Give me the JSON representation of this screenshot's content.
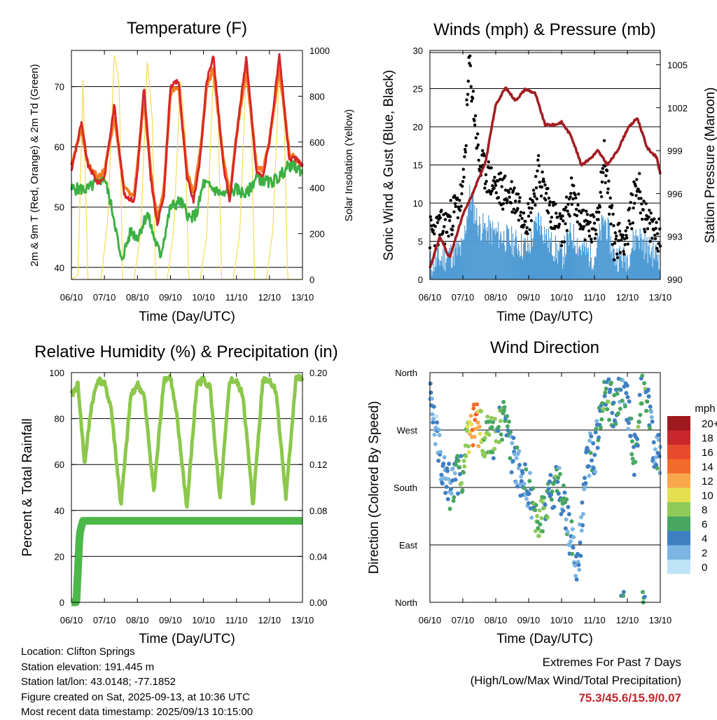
{
  "x_ticks": [
    "06/10",
    "07/10",
    "08/10",
    "09/10",
    "10/10",
    "11/10",
    "12/10",
    "13/10"
  ],
  "x_label": "Time (Day/UTC)",
  "colors": {
    "temp2m": "#d62728",
    "temp9m": "#f47c20",
    "td2m": "#3cb043",
    "solar": "#f5dc55",
    "gust": "#000000",
    "wind": "#4f9bd4",
    "pressure": "#a11d21",
    "rh": "#8cc84b",
    "precip": "#4cb849",
    "extremes": "#c0272d"
  },
  "panels": {
    "temperature": {
      "title": "Temperature (F)",
      "left_label": "2m & 9m T (Red, Orange) & 2m Td (Green)",
      "right_label": "Solar Insolation (Yellow)",
      "left_ticks": [
        "40",
        "50",
        "60",
        "70"
      ],
      "right_ticks": [
        "0",
        "200",
        "400",
        "600",
        "800",
        "1000"
      ]
    },
    "winds": {
      "title": "Winds (mph) & Pressure (mb)",
      "left_label": "Sonic Wind & Gust (Blue, Black)",
      "right_label": "Station Pressure (Maroon)",
      "left_ticks": [
        "0",
        "5",
        "10",
        "15",
        "20",
        "25",
        "30"
      ],
      "right_ticks": [
        "990",
        "993",
        "996",
        "999",
        "1002",
        "1005"
      ]
    },
    "humidity": {
      "title": "Relative Humidity (%) & Precipitation (in)",
      "left_label": "Percent & Total Rainfall",
      "left_ticks": [
        "0",
        "20",
        "40",
        "60",
        "80",
        "100"
      ],
      "right_ticks": [
        "0.00",
        "0.04",
        "0.08",
        "0.12",
        "0.16",
        "0.20"
      ]
    },
    "direction": {
      "title": "Wind Direction",
      "left_label": "Direction (Colored By Speed)",
      "left_ticks": [
        "North",
        "East",
        "South",
        "West",
        "North"
      ],
      "legend_title": "mph",
      "legend_labels": [
        "20+",
        "18",
        "16",
        "14",
        "12",
        "10",
        "8",
        "6",
        "4",
        "2",
        "0"
      ],
      "legend_colors": [
        "#9e1a1f",
        "#c8272c",
        "#e84a2e",
        "#f26b2c",
        "#f8a84b",
        "#e4e04f",
        "#8fca5a",
        "#48a660",
        "#3f7fc1",
        "#7cb5e3",
        "#bfe3f7"
      ]
    }
  },
  "chart_data": [
    {
      "type": "line",
      "title": "Temperature (F)",
      "xlabel": "Time (Day/UTC)",
      "ylabel": "2m & 9m T (Red, Orange) & 2m Td (Green)",
      "y2label": "Solar Insolation (Yellow)",
      "xlim": [
        6,
        13
      ],
      "ylim": [
        38,
        76
      ],
      "y2lim": [
        0,
        1000
      ],
      "grid": true,
      "series": [
        {
          "name": "2m T",
          "axis": "left",
          "x": [
            6.0,
            6.3,
            6.5,
            6.8,
            7.0,
            7.3,
            7.6,
            7.9,
            8.0,
            8.2,
            8.4,
            8.6,
            8.8,
            9.0,
            9.25,
            9.5,
            9.7,
            9.9,
            10.1,
            10.3,
            10.6,
            10.8,
            11.0,
            11.3,
            11.6,
            11.8,
            12.0,
            12.3,
            12.6,
            12.8,
            13.0
          ],
          "y": [
            56,
            64,
            57,
            54,
            55,
            67,
            52,
            51,
            56,
            70,
            55,
            47,
            52,
            70,
            71,
            55,
            51,
            58,
            71,
            75,
            57,
            51,
            62,
            75,
            56,
            55,
            61,
            75,
            58,
            58,
            57
          ]
        },
        {
          "name": "9m T",
          "axis": "left",
          "x": [
            6.0,
            6.3,
            6.5,
            6.8,
            7.0,
            7.3,
            7.6,
            7.9,
            8.0,
            8.2,
            8.4,
            8.6,
            8.8,
            9.0,
            9.25,
            9.5,
            9.7,
            9.9,
            10.1,
            10.3,
            10.6,
            10.8,
            11.0,
            11.3,
            11.6,
            11.8,
            12.0,
            12.3,
            12.6,
            12.8,
            13.0
          ],
          "y": [
            57,
            63,
            57,
            55,
            56,
            65,
            53,
            52,
            57,
            68,
            56,
            48,
            53,
            69,
            70,
            56,
            52,
            59,
            70,
            73,
            58,
            52,
            62,
            73,
            57,
            56,
            61,
            73,
            59,
            58,
            57
          ]
        },
        {
          "name": "2m Td",
          "axis": "left",
          "x": [
            6.0,
            6.5,
            7.0,
            7.3,
            7.5,
            7.8,
            8.0,
            8.3,
            8.5,
            8.7,
            9.0,
            9.3,
            9.6,
            9.8,
            10.0,
            10.3,
            10.6,
            11.0,
            11.3,
            11.6,
            12.0,
            12.3,
            12.6,
            13.0
          ],
          "y": [
            53,
            53,
            55,
            48,
            41,
            46,
            45,
            49,
            45,
            42,
            50,
            51,
            48,
            49,
            54,
            53,
            52,
            53,
            52,
            55,
            54,
            55,
            57,
            56
          ]
        },
        {
          "name": "Solar",
          "axis": "right",
          "x": [
            6.0,
            6.2,
            6.35,
            6.5,
            6.9,
            7.1,
            7.3,
            7.45,
            7.55,
            7.9,
            8.1,
            8.3,
            8.45,
            8.55,
            8.9,
            9.1,
            9.3,
            9.45,
            9.55,
            9.9,
            10.1,
            10.3,
            10.45,
            10.55,
            10.9,
            11.1,
            11.3,
            11.45,
            11.55,
            11.9,
            12.1,
            12.3,
            12.45,
            12.55,
            13.0
          ],
          "y": [
            0,
            20,
            870,
            0,
            0,
            260,
            990,
            850,
            0,
            0,
            200,
            960,
            700,
            0,
            0,
            220,
            870,
            640,
            0,
            0,
            190,
            900,
            710,
            0,
            0,
            200,
            930,
            700,
            0,
            0,
            210,
            920,
            680,
            0,
            0
          ]
        }
      ]
    },
    {
      "type": "line",
      "title": "Winds (mph) & Pressure (mb)",
      "xlabel": "Time (Day/UTC)",
      "ylabel": "Sonic Wind & Gust (Blue, Black)",
      "y2label": "Station Pressure (Maroon)",
      "xlim": [
        6,
        13
      ],
      "ylim": [
        0,
        30
      ],
      "y2lim": [
        990,
        1006
      ],
      "grid": true,
      "series": [
        {
          "name": "Sonic Wind",
          "axis": "left",
          "x": [
            6.0,
            6.5,
            7.0,
            7.2,
            7.5,
            8.0,
            8.5,
            9.0,
            9.3,
            9.6,
            10.0,
            10.3,
            10.6,
            11.0,
            11.3,
            11.6,
            12.0,
            12.3,
            12.6,
            13.0
          ],
          "y": [
            2,
            3,
            4,
            11,
            7,
            6,
            5,
            4,
            8,
            5,
            3,
            6,
            4,
            3,
            8,
            3,
            3,
            6,
            4,
            3
          ]
        },
        {
          "name": "Gust",
          "axis": "left",
          "x": [
            6.0,
            6.5,
            7.0,
            7.2,
            7.5,
            8.0,
            8.5,
            9.0,
            9.3,
            9.6,
            10.0,
            10.3,
            10.6,
            11.0,
            11.3,
            11.6,
            12.0,
            12.3,
            12.6,
            13.0
          ],
          "y": [
            6,
            7,
            11,
            28.3,
            15,
            12,
            11,
            8,
            14,
            10,
            6,
            11,
            8,
            6,
            16,
            5,
            6,
            13,
            7,
            6
          ]
        },
        {
          "name": "Station Pressure",
          "axis": "right",
          "x": [
            6.0,
            6.3,
            6.6,
            7.0,
            7.3,
            7.7,
            8.0,
            8.3,
            8.6,
            8.9,
            9.2,
            9.5,
            9.8,
            10.0,
            10.3,
            10.6,
            10.9,
            11.1,
            11.4,
            11.7,
            12.0,
            12.3,
            12.6,
            12.9,
            13.0
          ],
          "y": [
            990.8,
            993,
            991.5,
            994.5,
            996,
            998.3,
            1002.2,
            1003.4,
            1002.5,
            1003.3,
            1003,
            1000.8,
            1000.8,
            1001,
            1000,
            998,
            998.5,
            999,
            998,
            999,
            1000.5,
            1001.3,
            999.2,
            998.5,
            997.3
          ]
        }
      ]
    },
    {
      "type": "line",
      "title": "Relative Humidity (%) & Precipitation (in)",
      "xlabel": "Time (Day/UTC)",
      "ylabel": "Percent & Total Rainfall",
      "xlim": [
        6,
        13
      ],
      "ylim": [
        0,
        100
      ],
      "y2lim": [
        0,
        0.2
      ],
      "grid": true,
      "series": [
        {
          "name": "Relative Humidity",
          "axis": "left",
          "x": [
            6.0,
            6.2,
            6.4,
            6.6,
            6.8,
            7.0,
            7.2,
            7.5,
            7.8,
            8.0,
            8.2,
            8.5,
            8.8,
            9.0,
            9.2,
            9.5,
            9.8,
            10.0,
            10.2,
            10.5,
            10.8,
            11.0,
            11.2,
            11.5,
            11.8,
            12.0,
            12.2,
            12.5,
            12.8,
            13.0
          ],
          "y": [
            90,
            95,
            60,
            85,
            97,
            95,
            85,
            42,
            90,
            95,
            90,
            48,
            97,
            98,
            80,
            41,
            95,
            97,
            94,
            44,
            97,
            96,
            90,
            42,
            97,
            97,
            92,
            45,
            98,
            97
          ]
        },
        {
          "name": "Total Precipitation",
          "axis": "right",
          "x": [
            6.0,
            6.15,
            6.25,
            6.35,
            13.0
          ],
          "y": [
            0.0,
            0.0,
            0.06,
            0.071,
            0.071
          ]
        }
      ]
    },
    {
      "type": "scatter",
      "title": "Wind Direction",
      "xlabel": "Time (Day/UTC)",
      "ylabel": "Direction (Colored By Speed)",
      "xlim": [
        6,
        13
      ],
      "categories": [
        "North",
        "East",
        "South",
        "West",
        "North"
      ],
      "colorbar": {
        "label": "mph",
        "ticks": [
          0,
          2,
          4,
          6,
          8,
          10,
          12,
          14,
          16,
          18,
          20
        ]
      },
      "series": [
        {
          "name": "Wind Direction",
          "x": [
            6.0,
            6.3,
            6.6,
            7.0,
            7.2,
            7.4,
            7.6,
            7.9,
            8.2,
            8.5,
            8.8,
            9.0,
            9.3,
            9.6,
            9.9,
            10.2,
            10.5,
            10.8,
            11.0,
            11.3,
            11.6,
            11.9,
            12.2,
            12.5,
            12.8,
            13.0
          ],
          "y": [
            320,
            230,
            180,
            210,
            262,
            285,
            265,
            255,
            290,
            230,
            190,
            175,
            130,
            160,
            190,
            120,
            60,
            230,
            230,
            330,
            300,
            350,
            230,
            360,
            240,
            225
          ],
          "speed": [
            3,
            2,
            4,
            6,
            10,
            14,
            8,
            7,
            6,
            4,
            3,
            4,
            7,
            6,
            5,
            4,
            3,
            3,
            4,
            6,
            5,
            4,
            5,
            6,
            4,
            3
          ]
        }
      ]
    }
  ],
  "info": {
    "location": "Location: Clifton Springs",
    "elevation": "Station elevation: 191.445 m",
    "latlon": "Station lat/lon: 43.0148; -77.1852",
    "created": "Figure created on Sat, 2025-09-13, at 10:36 UTC",
    "timestamp": "Most recent data timestamp: 2025/09/13 10:15:00"
  },
  "extremes": {
    "title": "Extremes For Past 7 Days",
    "subtitle": "(High/Low/Max Wind/Total Precipitation)",
    "values": "75.3/45.6/15.9/0.07"
  }
}
